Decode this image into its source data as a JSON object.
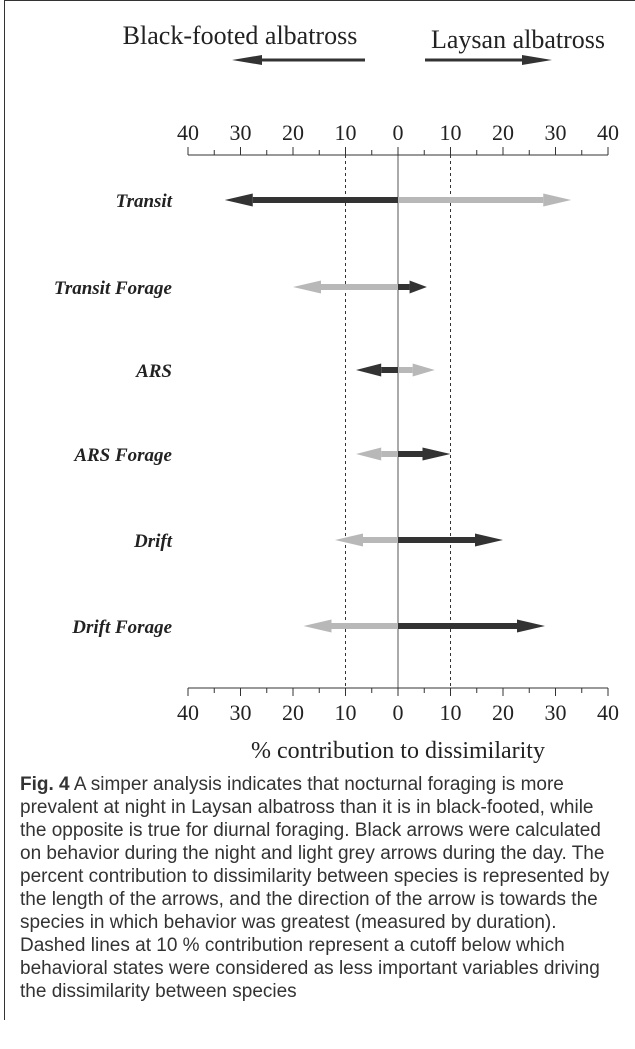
{
  "chart_data": {
    "type": "bar",
    "subtype": "diverging-arrows",
    "left_species": "Black-footed albatross",
    "right_species": "Laysan albatross",
    "xlabel": "% contribution to dissimilarity",
    "tick_labels": [
      "40",
      "30",
      "20",
      "10",
      "0",
      "10",
      "20",
      "30",
      "40"
    ],
    "tick_values": [
      -40,
      -30,
      -20,
      -10,
      0,
      10,
      20,
      30,
      40
    ],
    "xlim": [
      -40,
      40
    ],
    "cutoff_lines": [
      -10,
      10
    ],
    "categories": [
      "Transit",
      "Transit Forage",
      "ARS",
      "ARS Forage",
      "Drift",
      "Drift Forage"
    ],
    "series": [
      {
        "name": "Night",
        "color": "#333333",
        "values": [
          -33,
          5.5,
          -8,
          10,
          20,
          28
        ]
      },
      {
        "name": "Day",
        "color": "#b8b8b8",
        "values": [
          33,
          -20,
          7,
          -8,
          -12,
          -18
        ]
      }
    ]
  },
  "caption": {
    "label": "Fig. 4",
    "text": " A simper analysis indicates that nocturnal foraging is more prevalent at night in Laysan albatross than it is in black-footed, while the opposite is true for diurnal foraging. Black arrows were calculated on behavior during the night and light grey arrows during the day. The percent contribution to dissimilarity between species is represented by the length of the arrows, and the direction of the arrow is towards the species in which behavior was greatest (measured by duration). Dashed lines at 10 % contribution represent a cutoff below which behavioral states were considered as less important variables driving the dissimilarity between species"
  }
}
